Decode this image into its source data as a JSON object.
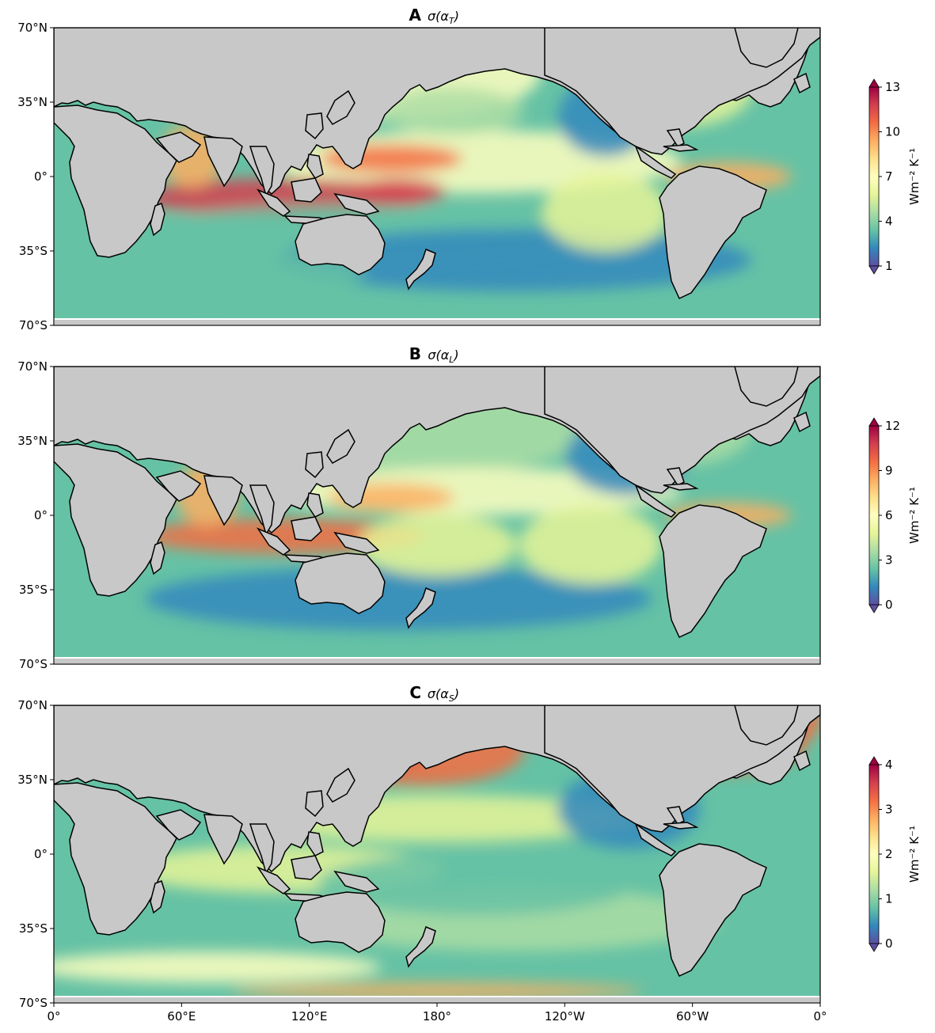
{
  "figure": {
    "panels": [
      {
        "letter": "A",
        "title": "σ(α",
        "subscript": "T",
        "title_close": ")",
        "colorbar": {
          "ticks": [
            "1",
            "4",
            "7",
            "10",
            "13"
          ],
          "min": 1,
          "max": 13,
          "label": "Wm⁻² K⁻¹"
        }
      },
      {
        "letter": "B",
        "title": "σ(α",
        "subscript": "L",
        "title_close": ")",
        "colorbar": {
          "ticks": [
            "0",
            "3",
            "6",
            "9",
            "12"
          ],
          "min": 0,
          "max": 12,
          "label": "Wm⁻² K⁻¹"
        }
      },
      {
        "letter": "C",
        "title": "σ(α",
        "subscript": "S",
        "title_close": ")",
        "colorbar": {
          "ticks": [
            "0",
            "1",
            "2",
            "3",
            "4"
          ],
          "min": 0,
          "max": 4,
          "label": "Wm⁻² K⁻¹"
        }
      }
    ],
    "lat_ticks": [
      "70°N",
      "35°N",
      "0°",
      "35°S",
      "70°S"
    ],
    "lon_ticks": [
      "0°",
      "60°E",
      "120°E",
      "180°",
      "120°W",
      "60°W",
      "0°"
    ],
    "colormap": [
      "#5e4fa2",
      "#3288bd",
      "#66c2a5",
      "#abdda4",
      "#e6f598",
      "#ffffbf",
      "#fee08b",
      "#fdae61",
      "#f46d43",
      "#d53e4f",
      "#9e0142"
    ],
    "land_color": "#c8c8c8",
    "coast_color": "#000000",
    "ice_edge_color": "#ffffff"
  }
}
